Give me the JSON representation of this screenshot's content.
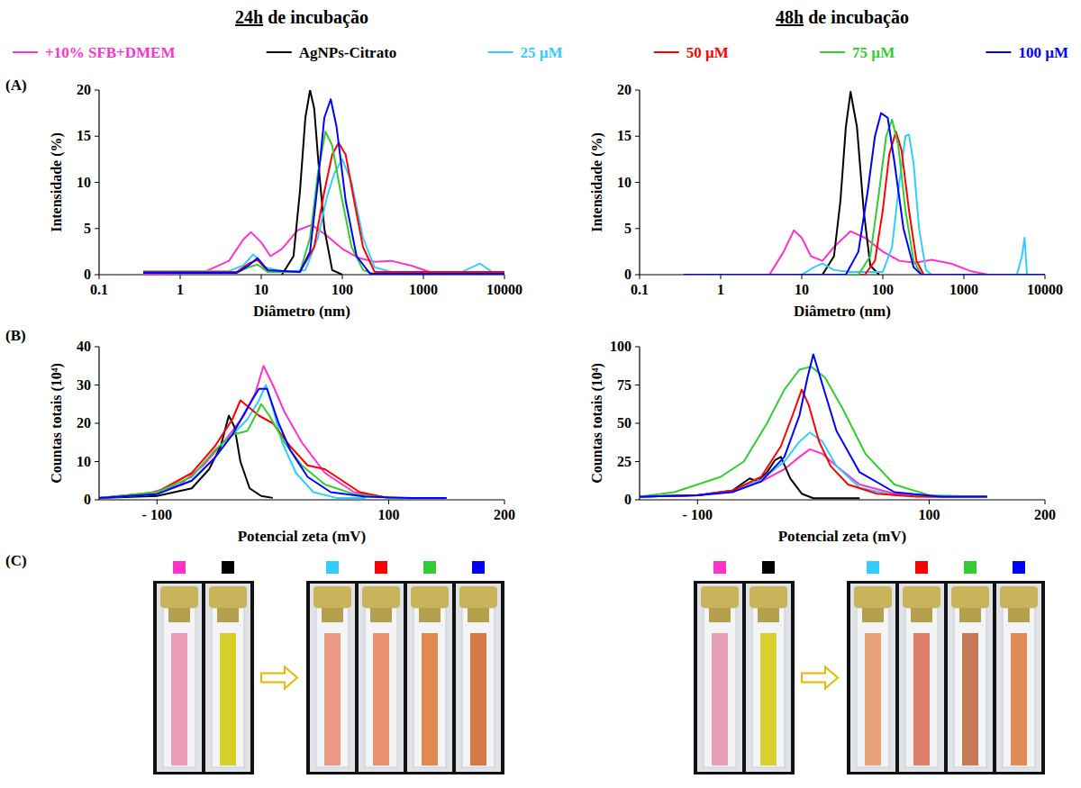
{
  "header": {
    "columns": [
      "24h de incubação",
      "48h de incubação"
    ]
  },
  "panels": [
    "(A)",
    "(B)",
    "(C)"
  ],
  "chart_data": [
    {
      "type": "line",
      "xlabel": "Diâmetro (nm)",
      "ylabel": "Intensidade (%)",
      "log": "x",
      "xlim": [
        0.1,
        10000
      ],
      "xticks": [
        0.1,
        1,
        10,
        100,
        1000,
        10000
      ],
      "ylim": [
        0,
        20
      ],
      "yticks": [
        0,
        5,
        10,
        15,
        20
      ],
      "legend": "top",
      "series": [
        {
          "name": "+10% SFB+DMEM",
          "color": "#ff33cc",
          "x": [
            0.35,
            2,
            4,
            6,
            7.5,
            10,
            13,
            18,
            28,
            42,
            65,
            100,
            160,
            250,
            400,
            700,
            1200,
            2000
          ],
          "values": [
            0,
            0.3,
            1.5,
            3.8,
            4.6,
            3.5,
            2,
            2.8,
            4.8,
            5.4,
            4.2,
            2.8,
            1.8,
            1.4,
            1.5,
            1,
            0.3,
            0
          ]
        },
        {
          "name": "AgNPs-Citrato",
          "color": "#000000",
          "x": [
            18,
            25,
            30,
            35,
            40,
            45,
            52,
            60,
            75,
            100
          ],
          "values": [
            0,
            2,
            9,
            17,
            20,
            18,
            11,
            5,
            0.5,
            0
          ]
        },
        {
          "name": "25 µM",
          "color": "#33ccff",
          "x": [
            0.35,
            4,
            6,
            8,
            11,
            20,
            35,
            50,
            65,
            80,
            100,
            130,
            180,
            250,
            400,
            3000,
            5000,
            7000,
            10000
          ],
          "values": [
            0.4,
            0.4,
            1,
            2.2,
            0.8,
            0.3,
            0.5,
            4,
            8.5,
            11,
            12.5,
            10,
            4,
            0.8,
            0.3,
            0.3,
            1.2,
            0.3,
            0.3
          ]
        },
        {
          "name": "50 µM",
          "color": "#ff0000",
          "x": [
            0.35,
            5,
            7,
            9,
            12,
            30,
            45,
            60,
            75,
            90,
            110,
            140,
            180,
            250,
            10000
          ],
          "values": [
            0.3,
            0.3,
            1.2,
            1.6,
            0.4,
            0.3,
            3,
            9,
            13,
            14.3,
            13,
            8,
            3,
            0.3,
            0.3
          ]
        },
        {
          "name": "75 µM",
          "color": "#33cc33",
          "x": [
            0.35,
            5,
            7,
            9,
            12,
            30,
            40,
            50,
            62,
            75,
            95,
            130,
            180,
            260,
            10000
          ],
          "values": [
            0.2,
            0.2,
            0.8,
            1.1,
            0.3,
            0.3,
            4,
            11,
            15.5,
            14,
            9,
            3,
            0.5,
            0,
            0
          ]
        },
        {
          "name": "100 µM",
          "color": "#0000ff",
          "x": [
            0.35,
            5,
            7,
            9,
            12,
            30,
            40,
            50,
            60,
            72,
            85,
            110,
            150,
            220,
            10000
          ],
          "values": [
            0.2,
            0.2,
            1,
            1.8,
            0.5,
            0.3,
            2.5,
            10,
            17,
            19,
            16,
            8,
            2,
            0.1,
            0.1
          ]
        }
      ]
    },
    {
      "type": "line",
      "xlabel": "Diâmetro (nm)",
      "ylabel": "Intensidade (%)",
      "log": "x",
      "xlim": [
        0.1,
        10000
      ],
      "xticks": [
        0.1,
        1,
        10,
        100,
        1000,
        10000
      ],
      "ylim": [
        0,
        20
      ],
      "yticks": [
        0,
        5,
        10,
        15,
        20
      ],
      "series": [
        {
          "color": "#ff33cc",
          "x": [
            0.35,
            4,
            6,
            8,
            10,
            13,
            18,
            25,
            40,
            60,
            100,
            160,
            250,
            400,
            700,
            1200,
            2000
          ],
          "values": [
            0,
            0,
            2.5,
            4.8,
            4,
            2,
            1.5,
            3,
            4.7,
            4,
            2.5,
            1.5,
            1.3,
            1.6,
            1.2,
            0.4,
            0
          ]
        },
        {
          "color": "#000000",
          "x": [
            18,
            25,
            30,
            35,
            40,
            48,
            58,
            70,
            90
          ],
          "values": [
            0,
            2,
            8,
            16,
            19.8,
            16,
            7,
            1,
            0
          ]
        },
        {
          "color": "#33ccff",
          "x": [
            0.35,
            10,
            14,
            18,
            25,
            40,
            100,
            130,
            160,
            190,
            210,
            240,
            280,
            340,
            400,
            4500,
            5200,
            5600,
            6000,
            10000
          ],
          "values": [
            0,
            0,
            0.8,
            1.2,
            0.5,
            0.3,
            0.3,
            3,
            10,
            15,
            15.2,
            12,
            5,
            0.5,
            0,
            0,
            2,
            4,
            0,
            0
          ]
        },
        {
          "color": "#ff0000",
          "x": [
            0.35,
            60,
            80,
            100,
            120,
            145,
            170,
            210,
            260,
            320,
            10000
          ],
          "values": [
            0,
            0,
            1.5,
            7,
            13,
            15.5,
            13.5,
            7,
            1.5,
            0,
            0
          ]
        },
        {
          "color": "#33cc33",
          "x": [
            0.35,
            50,
            70,
            90,
            110,
            130,
            155,
            190,
            240,
            300,
            10000
          ],
          "values": [
            0,
            0,
            2,
            9,
            15,
            16.8,
            14,
            7,
            1.5,
            0,
            0
          ]
        },
        {
          "color": "#0000ff",
          "x": [
            0.35,
            35,
            50,
            65,
            80,
            95,
            115,
            140,
            180,
            240,
            300,
            10000
          ],
          "values": [
            0,
            0,
            2.5,
            9,
            15,
            17.5,
            17,
            12,
            5,
            0.8,
            0,
            0
          ]
        }
      ]
    },
    {
      "type": "line",
      "xlabel": "Potencial zeta (mV)",
      "ylabel": "Countas totais (10⁴)",
      "xlim": [
        -150,
        200
      ],
      "xticks": [
        {
          "value": -100,
          "label": "- 100"
        },
        100,
        200
      ],
      "ylim": [
        0,
        40
      ],
      "yticks": [
        0,
        10,
        20,
        30,
        40
      ],
      "series": [
        {
          "color": "#ff33cc",
          "x": [
            -150,
            -110,
            -80,
            -60,
            -40,
            -25,
            -15,
            -8,
            0,
            10,
            25,
            45,
            70,
            100,
            150
          ],
          "values": [
            0.5,
            1.5,
            4,
            9,
            16,
            22,
            28,
            35,
            30,
            23,
            15,
            7,
            2,
            0.5,
            0.5
          ]
        },
        {
          "color": "#000000",
          "x": [
            -150,
            -100,
            -70,
            -55,
            -45,
            -38,
            -33,
            -28,
            -20,
            -10,
            0
          ],
          "values": [
            0.5,
            1,
            3,
            8,
            14,
            22,
            19,
            10,
            3,
            1,
            0.5
          ]
        },
        {
          "color": "#33ccff",
          "x": [
            -150,
            -100,
            -70,
            -50,
            -35,
            -22,
            -12,
            -6,
            0,
            8,
            20,
            35,
            55,
            80
          ],
          "values": [
            0.5,
            1.5,
            5,
            11,
            17,
            21,
            26,
            30,
            24,
            15,
            7,
            2,
            0.5,
            0.5
          ]
        },
        {
          "color": "#ff0000",
          "x": [
            -150,
            -100,
            -70,
            -50,
            -35,
            -28,
            -20,
            -12,
            0,
            15,
            30,
            45,
            60,
            75,
            100,
            150
          ],
          "values": [
            0.5,
            2,
            7,
            14,
            21,
            26,
            24,
            22,
            20,
            14,
            9,
            8,
            5,
            2,
            0.5,
            0.5
          ]
        },
        {
          "color": "#33cc33",
          "x": [
            -150,
            -100,
            -70,
            -50,
            -35,
            -22,
            -15,
            -10,
            -3,
            10,
            25,
            45,
            70,
            100,
            150
          ],
          "values": [
            0.5,
            2,
            6,
            13,
            17,
            18,
            22,
            25,
            22,
            15,
            9,
            4,
            1.5,
            0.5,
            0.5
          ]
        },
        {
          "color": "#0000ff",
          "x": [
            -150,
            -100,
            -70,
            -50,
            -35,
            -20,
            -12,
            -5,
            5,
            15,
            30,
            50,
            80,
            120,
            150
          ],
          "values": [
            0.5,
            1.5,
            5,
            11,
            17,
            25,
            29,
            29,
            20,
            13,
            6,
            2,
            0.8,
            0.5,
            0.5
          ]
        }
      ]
    },
    {
      "type": "line",
      "xlabel": "Potencial zeta (mV)",
      "ylabel": "Countas totais (10⁴)",
      "xlim": [
        -150,
        200
      ],
      "xticks": [
        {
          "value": -100,
          "label": "- 100"
        },
        100,
        200
      ],
      "ylim": [
        0,
        100
      ],
      "yticks": [
        0,
        25,
        50,
        75,
        100
      ],
      "series": [
        {
          "color": "#ff33cc",
          "x": [
            -150,
            -100,
            -70,
            -45,
            -25,
            -12,
            -3,
            8,
            20,
            40,
            70,
            100,
            150
          ],
          "values": [
            2,
            3,
            6,
            12,
            20,
            28,
            33,
            30,
            22,
            10,
            4,
            2,
            2
          ]
        },
        {
          "color": "#000000",
          "x": [
            -150,
            -100,
            -70,
            -55,
            -48,
            -40,
            -33,
            -28,
            -20,
            -10,
            0,
            40
          ],
          "values": [
            2,
            3,
            6,
            14,
            12,
            18,
            26,
            28,
            14,
            4,
            1,
            1
          ]
        },
        {
          "color": "#33ccff",
          "x": [
            -150,
            -100,
            -70,
            -45,
            -25,
            -12,
            -3,
            8,
            20,
            40,
            70,
            100,
            150
          ],
          "values": [
            2,
            3,
            6,
            13,
            25,
            38,
            44,
            38,
            22,
            8,
            3,
            2,
            2
          ]
        },
        {
          "color": "#ff0000",
          "x": [
            -150,
            -100,
            -70,
            -45,
            -28,
            -18,
            -10,
            -4,
            5,
            15,
            30,
            55,
            90,
            150
          ],
          "values": [
            2,
            3,
            6,
            15,
            35,
            55,
            72,
            62,
            38,
            22,
            10,
            4,
            2,
            2
          ]
        },
        {
          "color": "#33cc33",
          "x": [
            -150,
            -120,
            -100,
            -80,
            -60,
            -40,
            -25,
            -12,
            -2,
            10,
            25,
            45,
            70,
            100,
            150
          ],
          "values": [
            2,
            5,
            10,
            15,
            25,
            50,
            72,
            85,
            87,
            80,
            60,
            30,
            10,
            3,
            2
          ]
        },
        {
          "color": "#0000ff",
          "x": [
            -150,
            -100,
            -70,
            -45,
            -25,
            -12,
            -5,
            0,
            8,
            20,
            40,
            70,
            110,
            150
          ],
          "values": [
            2,
            3,
            5,
            12,
            28,
            55,
            80,
            95,
            75,
            45,
            18,
            5,
            2,
            2
          ]
        }
      ]
    }
  ],
  "photos": [
    {
      "groups": [
        [
          {
            "marker": "#ff33cc",
            "liquid": "#e99cb8"
          },
          {
            "marker": "#000000",
            "liquid": "#d6cf2b"
          }
        ],
        [
          {
            "marker": "#33ccff",
            "liquid": "#ec9a86"
          },
          {
            "marker": "#ff0000",
            "liquid": "#e8906f"
          },
          {
            "marker": "#33cc33",
            "liquid": "#e08a52"
          },
          {
            "marker": "#0000ff",
            "liquid": "#d47844"
          }
        ]
      ]
    },
    {
      "groups": [
        [
          {
            "marker": "#ff33cc",
            "liquid": "#e8a0b4"
          },
          {
            "marker": "#000000",
            "liquid": "#d8d030"
          }
        ],
        [
          {
            "marker": "#33ccff",
            "liquid": "#eaa27a"
          },
          {
            "marker": "#ff0000",
            "liquid": "#e0806a"
          },
          {
            "marker": "#33cc33",
            "liquid": "#c87a58"
          },
          {
            "marker": "#0000ff",
            "liquid": "#e08a58"
          }
        ]
      ]
    }
  ]
}
